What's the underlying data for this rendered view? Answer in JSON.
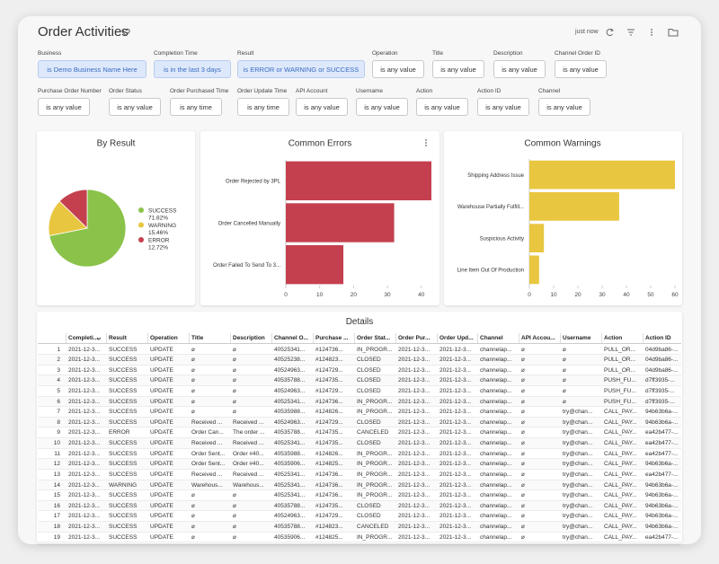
{
  "header": {
    "title": "Order Activities",
    "updated": "just now"
  },
  "filters": [
    {
      "label": "Business",
      "value": "is Demo Business Name Here",
      "active": true
    },
    {
      "label": "Completion Time",
      "value": "is in the last 3 days",
      "active": true
    },
    {
      "label": "Result",
      "value": "is ERROR or WARNING or SUCCESS",
      "active": true
    },
    {
      "label": "Operation",
      "value": "is any value",
      "active": false
    },
    {
      "label": "Title",
      "value": "is any value",
      "active": false
    },
    {
      "label": "Description",
      "value": "is any value",
      "active": false
    },
    {
      "label": "Channel Order ID",
      "value": "is any value",
      "active": false
    },
    {
      "label": "Purchase Order Number",
      "value": "is any value",
      "active": false
    },
    {
      "label": "Order Status",
      "value": "is any value",
      "active": false
    },
    {
      "label": "Order Purchased Time",
      "value": "is any time",
      "active": false
    },
    {
      "label": "Order Update Time",
      "value": "is any time",
      "active": false
    },
    {
      "label": "API Account",
      "value": "is any value",
      "active": false
    },
    {
      "label": "Username",
      "value": "is any value",
      "active": false
    },
    {
      "label": "Action",
      "value": "is any value",
      "active": false
    },
    {
      "label": "Action ID",
      "value": "is any value",
      "active": false
    },
    {
      "label": "Channel",
      "value": "is any value",
      "active": false
    }
  ],
  "chart_data": [
    {
      "type": "pie",
      "title": "By Result",
      "categories": [
        "SUCCESS",
        "WARNING",
        "ERROR"
      ],
      "values": [
        71.82,
        15.46,
        12.72
      ],
      "value_labels": [
        "71.82%",
        "15.46%",
        "12.72%"
      ],
      "colors": [
        "#8bc34a",
        "#e8c63f",
        "#c4404f"
      ]
    },
    {
      "type": "bar",
      "orientation": "horizontal",
      "title": "Common Errors",
      "categories": [
        "Order Rejected by 3PL",
        "Order Cancelled Manually",
        "Order Failed To Send To 3..."
      ],
      "values": [
        43,
        32,
        17
      ],
      "color": "#c4404f",
      "xlim": [
        0,
        43
      ],
      "xticks": [
        0,
        10,
        20,
        30,
        40
      ]
    },
    {
      "type": "bar",
      "orientation": "horizontal",
      "title": "Common Warnings",
      "categories": [
        "Shipping Address Issue",
        "Warehouse Partially Fulfill...",
        "Suspicious Activity",
        "Line Item Out Of Production"
      ],
      "values": [
        60,
        37,
        6,
        4
      ],
      "color": "#e8c63f",
      "xlim": [
        0,
        60
      ],
      "xticks": [
        0,
        10,
        20,
        30,
        40,
        50,
        60
      ]
    }
  ],
  "details": {
    "title": "Details",
    "columns": [
      "Completi...",
      "Result",
      "Operation",
      "Title",
      "Description",
      "Channel O...",
      "Purchase ...",
      "Order Stat...",
      "Order Pur...",
      "Order Upd...",
      "Channel",
      "API Accou...",
      "Username",
      "Action",
      "Action ID"
    ],
    "rows": [
      [
        1,
        "2021-12-3...",
        "SUCCESS",
        "UPDATE",
        "⌀",
        "⌀",
        "40525341...",
        "#124736...",
        "IN_PROGR...",
        "2021-12-3...",
        "2021-12-3...",
        "channelap...",
        "⌀",
        "⌀",
        "PULL_OR...",
        "04d9ba86-..."
      ],
      [
        2,
        "2021-12-3...",
        "SUCCESS",
        "UPDATE",
        "⌀",
        "⌀",
        "40525238...",
        "#124823...",
        "CLOSED",
        "2021-12-3...",
        "2021-12-3...",
        "channelap...",
        "⌀",
        "⌀",
        "PULL_OR...",
        "04d9ba86-..."
      ],
      [
        3,
        "2021-12-3...",
        "SUCCESS",
        "UPDATE",
        "⌀",
        "⌀",
        "40524963...",
        "#124729...",
        "CLOSED",
        "2021-12-3...",
        "2021-12-3...",
        "channelap...",
        "⌀",
        "⌀",
        "PULL_OR...",
        "04d9ba86-..."
      ],
      [
        4,
        "2021-12-3...",
        "SUCCESS",
        "UPDATE",
        "⌀",
        "⌀",
        "40535788...",
        "#124735...",
        "CLOSED",
        "2021-12-3...",
        "2021-12-3...",
        "channelap...",
        "⌀",
        "⌀",
        "PUSH_FU...",
        "d7ff3935-..."
      ],
      [
        5,
        "2021-12-3...",
        "SUCCESS",
        "UPDATE",
        "⌀",
        "⌀",
        "40524963...",
        "#124729...",
        "CLOSED",
        "2021-12-3...",
        "2021-12-3...",
        "channelap...",
        "⌀",
        "⌀",
        "PUSH_FU...",
        "d7ff3935-..."
      ],
      [
        6,
        "2021-12-3...",
        "SUCCESS",
        "UPDATE",
        "⌀",
        "⌀",
        "40525341...",
        "#124736...",
        "IN_PROGR...",
        "2021-12-3...",
        "2021-12-3...",
        "channelap...",
        "⌀",
        "⌀",
        "PUSH_FU...",
        "d7ff3935-..."
      ],
      [
        7,
        "2021-12-3...",
        "SUCCESS",
        "UPDATE",
        "⌀",
        "⌀",
        "40535988...",
        "#124826...",
        "IN_PROGR...",
        "2021-12-3...",
        "2021-12-3...",
        "channelap...",
        "⌀",
        "try@chan...",
        "CALL_PAY...",
        "94b63b6a-..."
      ],
      [
        8,
        "2021-12-3...",
        "SUCCESS",
        "UPDATE",
        "Received ...",
        "Received ...",
        "40524963...",
        "#124729...",
        "CLOSED",
        "2021-12-3...",
        "2021-12-3...",
        "channelap...",
        "⌀",
        "try@chan...",
        "CALL_PAY...",
        "94b63b6a-..."
      ],
      [
        9,
        "2021-12-3...",
        "ERROR",
        "UPDATE",
        "Order Can...",
        "The order ...",
        "40535788...",
        "#124735...",
        "CANCELED",
        "2021-12-3...",
        "2021-12-3...",
        "channelap...",
        "⌀",
        "try@chan...",
        "CALL_PAY...",
        "ea42b477-..."
      ],
      [
        10,
        "2021-12-3...",
        "SUCCESS",
        "UPDATE",
        "Received ...",
        "Received ...",
        "40525341...",
        "#124735...",
        "CLOSED",
        "2021-12-3...",
        "2021-12-3...",
        "channelap...",
        "⌀",
        "try@chan...",
        "CALL_PAY...",
        "ea42b477-..."
      ],
      [
        11,
        "2021-12-3...",
        "SUCCESS",
        "UPDATE",
        "Order Sent...",
        "Order #40...",
        "40535988...",
        "#124826...",
        "IN_PROGR...",
        "2021-12-3...",
        "2021-12-3...",
        "channelap...",
        "⌀",
        "try@chan...",
        "CALL_PAY...",
        "ea42b477-..."
      ],
      [
        12,
        "2021-12-3...",
        "SUCCESS",
        "UPDATE",
        "Order Sent...",
        "Order #40...",
        "40535906...",
        "#124825...",
        "IN_PROGR...",
        "2021-12-3...",
        "2021-12-3...",
        "channelap...",
        "⌀",
        "try@chan...",
        "CALL_PAY...",
        "94b63b6a-..."
      ],
      [
        13,
        "2021-12-3...",
        "SUCCESS",
        "UPDATE",
        "Received ...",
        "Received ...",
        "40525341...",
        "#124736...",
        "IN_PROGR...",
        "2021-12-3...",
        "2021-12-3...",
        "channelap...",
        "⌀",
        "try@chan...",
        "CALL_PAY...",
        "ea42b477-..."
      ],
      [
        14,
        "2021-12-3...",
        "WARNING",
        "UPDATE",
        "Warehous...",
        "Warehous...",
        "40525341...",
        "#124736...",
        "IN_PROGR...",
        "2021-12-3...",
        "2021-12-3...",
        "channelap...",
        "⌀",
        "try@chan...",
        "CALL_PAY...",
        "94b63b6a-..."
      ],
      [
        15,
        "2021-12-3...",
        "SUCCESS",
        "UPDATE",
        "⌀",
        "⌀",
        "40525341...",
        "#124736...",
        "IN_PROGR...",
        "2021-12-3...",
        "2021-12-3...",
        "channelap...",
        "⌀",
        "try@chan...",
        "CALL_PAY...",
        "94b63b6a-..."
      ],
      [
        16,
        "2021-12-3...",
        "SUCCESS",
        "UPDATE",
        "⌀",
        "⌀",
        "40535788...",
        "#124735...",
        "CLOSED",
        "2021-12-3...",
        "2021-12-3...",
        "channelap...",
        "⌀",
        "try@chan...",
        "CALL_PAY...",
        "94b63b6a-..."
      ],
      [
        17,
        "2021-12-3...",
        "SUCCESS",
        "UPDATE",
        "⌀",
        "⌀",
        "40524963...",
        "#124729...",
        "CLOSED",
        "2021-12-3...",
        "2021-12-3...",
        "channelap...",
        "⌀",
        "try@chan...",
        "CALL_PAY...",
        "94b63b6a-..."
      ],
      [
        18,
        "2021-12-3...",
        "SUCCESS",
        "UPDATE",
        "⌀",
        "⌀",
        "40535788...",
        "#124823...",
        "CANCELED",
        "2021-12-3...",
        "2021-12-3...",
        "channelap...",
        "⌀",
        "try@chan...",
        "CALL_PAY...",
        "94b63b6a-..."
      ],
      [
        19,
        "2021-12-3...",
        "SUCCESS",
        "UPDATE",
        "⌀",
        "⌀",
        "40535906...",
        "#124825...",
        "IN_PROGR...",
        "2021-12-3...",
        "2021-12-3...",
        "channelap...",
        "⌀",
        "try@chan...",
        "CALL_PAY...",
        "ea42b477-..."
      ]
    ]
  }
}
